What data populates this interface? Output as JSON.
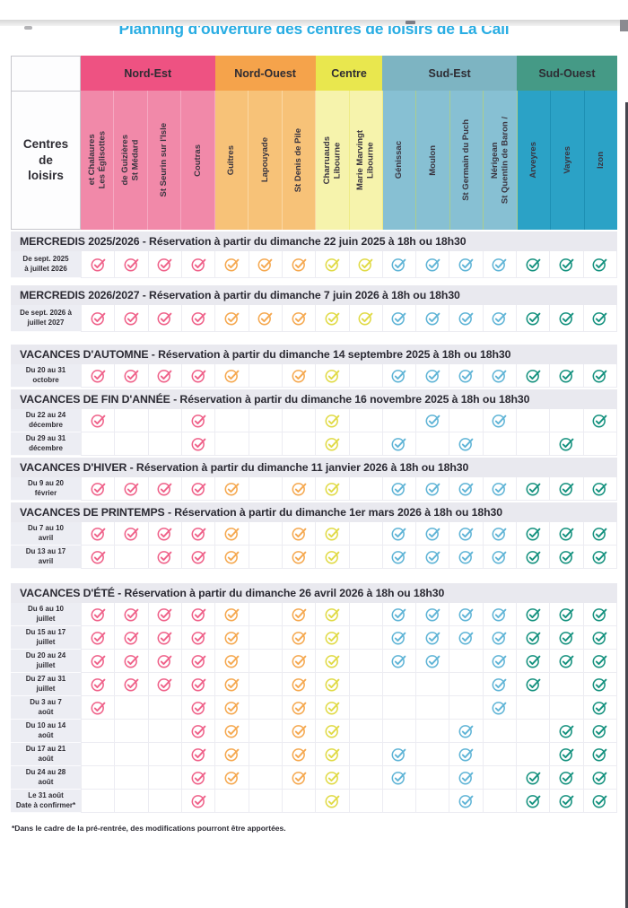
{
  "page": {
    "title": "Planning d'ouverture des centres de loisirs de La Cali",
    "title_color": "#29ade3",
    "footnote": "*Dans le cadre de la pré-rentrée, des modifications pourront être apportées."
  },
  "table": {
    "corner_label": "Centres\nde\nloisirs",
    "groups": [
      {
        "label": "Nord-Est",
        "band": "#ee5282",
        "body": "#f189a9",
        "check": "#ef6189",
        "sep": "#f5a8c1",
        "columns": [
          "Les Églisottes\net Chalaures",
          "St Médard\nde Guizières",
          "St Seurin sur l'Isle",
          "Coutras"
        ]
      },
      {
        "label": "Nord-Ouest",
        "band": "#f5a34b",
        "body": "#f7c278",
        "check": "#f5a84f",
        "sep": "#fad7a4",
        "columns": [
          "Guîtres",
          "Lapouyade",
          "St Denis de Pile"
        ]
      },
      {
        "label": "Centre",
        "band": "#e9e74e",
        "body": "#f6f3ac",
        "check": "#e0da45",
        "sep": "#eeeb86",
        "columns": [
          "Libourne\nCharruauds",
          "Libourne\nMarie Marvingt"
        ]
      },
      {
        "label": "Sud-Est",
        "band": "#7db4c2",
        "body": "#87c0d3",
        "check": "#5fb4d6",
        "sep": "#aace8e",
        "columns": [
          "Génissac",
          "Moulon",
          "St Germain du Puch",
          "St Quentin de Baron /\nNérigean"
        ]
      },
      {
        "label": "Sud-Ouest",
        "band": "#459a86",
        "body": "#2ba2c6",
        "check": "#14917e",
        "sep": "#1d90b4",
        "columns": [
          "Arveyres",
          "Vayres",
          "Izon"
        ]
      }
    ],
    "sections": [
      {
        "title": "MERCREDIS 2025/2026 - Réservation à partir du dimanche 22 juin 2025 à 18h ou 18h30",
        "rows": [
          {
            "label": "De sept. 2025\nà juillet 2026",
            "checks": [
              1,
              1,
              1,
              1,
              1,
              1,
              1,
              1,
              1,
              1,
              1,
              1,
              1,
              1,
              1,
              1
            ]
          }
        ]
      },
      {
        "title": "MERCREDIS 2026/2027 - Réservation à partir du dimanche 7 juin 2026 à 18h ou 18h30",
        "rows": [
          {
            "label": "De sept. 2026 à\njuillet 2027",
            "checks": [
              1,
              1,
              1,
              1,
              1,
              1,
              1,
              1,
              1,
              1,
              1,
              1,
              1,
              1,
              1,
              1
            ]
          }
        ]
      },
      {
        "title": "VACANCES D'AUTOMNE - Réservation à partir du dimanche 14 septembre 2025 à 18h ou 18h30",
        "rows": [
          {
            "label": "Du 20 au 31\noctobre",
            "checks": [
              1,
              1,
              1,
              1,
              1,
              0,
              1,
              1,
              0,
              1,
              1,
              1,
              1,
              1,
              1,
              1
            ]
          }
        ]
      },
      {
        "title": "VACANCES DE FIN D'ANNÉE - Réservation à partir du dimanche 16 novembre 2025 à 18h ou 18h30",
        "rows": [
          {
            "label": "Du 22 au 24\ndécembre",
            "checks": [
              1,
              0,
              0,
              1,
              0,
              0,
              0,
              1,
              0,
              0,
              1,
              0,
              1,
              0,
              0,
              1
            ]
          },
          {
            "label": "Du 29 au 31\ndécembre",
            "checks": [
              0,
              0,
              0,
              1,
              0,
              0,
              0,
              1,
              0,
              1,
              0,
              1,
              0,
              0,
              1,
              0
            ]
          }
        ]
      },
      {
        "title": "VACANCES D'HIVER - Réservation à partir du dimanche 11 janvier 2026 à 18h ou 18h30",
        "rows": [
          {
            "label": "Du 9 au 20\nfévrier",
            "checks": [
              1,
              1,
              1,
              1,
              1,
              0,
              1,
              1,
              0,
              1,
              1,
              1,
              1,
              1,
              1,
              1
            ]
          }
        ]
      },
      {
        "title": "VACANCES DE PRINTEMPS - Réservation à partir du dimanche 1er mars 2026 à 18h ou 18h30",
        "rows": [
          {
            "label": "Du 7 au 10\navril",
            "checks": [
              1,
              1,
              1,
              1,
              1,
              0,
              1,
              1,
              0,
              1,
              1,
              1,
              1,
              1,
              1,
              1
            ]
          },
          {
            "label": "Du 13 au 17\navril",
            "checks": [
              1,
              0,
              1,
              1,
              1,
              0,
              1,
              1,
              0,
              1,
              1,
              1,
              1,
              1,
              1,
              1
            ]
          }
        ]
      },
      {
        "title": "VACANCES D'ÉTÉ - Réservation à partir du dimanche 26 avril 2026 à 18h ou 18h30",
        "rows": [
          {
            "label": "Du 6 au 10\njuillet",
            "checks": [
              1,
              1,
              1,
              1,
              1,
              0,
              1,
              1,
              0,
              1,
              1,
              1,
              1,
              1,
              1,
              1
            ]
          },
          {
            "label": "Du 15 au 17\njuillet",
            "checks": [
              1,
              1,
              1,
              1,
              1,
              0,
              1,
              1,
              0,
              1,
              1,
              1,
              1,
              1,
              1,
              1
            ]
          },
          {
            "label": "Du 20 au 24\njuillet",
            "checks": [
              1,
              1,
              1,
              1,
              1,
              0,
              1,
              1,
              0,
              1,
              1,
              0,
              1,
              1,
              1,
              1
            ]
          },
          {
            "label": "Du 27 au 31\njuillet",
            "checks": [
              1,
              1,
              1,
              1,
              1,
              0,
              1,
              1,
              0,
              0,
              0,
              0,
              1,
              1,
              0,
              1
            ]
          },
          {
            "label": "Du 3 au 7\naoût",
            "checks": [
              1,
              0,
              0,
              1,
              1,
              0,
              1,
              1,
              0,
              0,
              0,
              0,
              1,
              0,
              0,
              1
            ]
          },
          {
            "label": "Du 10 au 14\naoût",
            "checks": [
              0,
              0,
              0,
              1,
              1,
              0,
              1,
              1,
              0,
              0,
              0,
              1,
              0,
              0,
              1,
              1
            ]
          },
          {
            "label": "Du 17 au 21\naoût",
            "checks": [
              0,
              0,
              0,
              1,
              1,
              0,
              1,
              1,
              0,
              1,
              0,
              1,
              0,
              0,
              1,
              1
            ]
          },
          {
            "label": "Du 24 au 28\naoût",
            "checks": [
              0,
              0,
              0,
              1,
              1,
              0,
              1,
              1,
              0,
              1,
              0,
              1,
              0,
              1,
              1,
              1
            ]
          },
          {
            "label": "Le 31 août\nDate à confirmer*",
            "checks": [
              0,
              0,
              0,
              1,
              0,
              0,
              0,
              1,
              0,
              0,
              0,
              1,
              0,
              1,
              1,
              1
            ]
          }
        ]
      }
    ]
  }
}
